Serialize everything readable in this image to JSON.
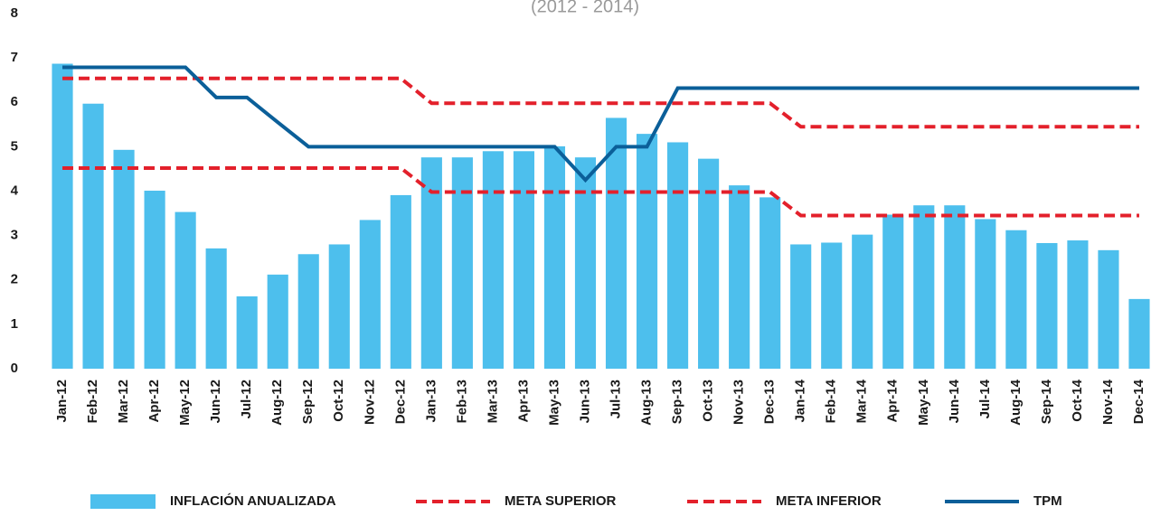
{
  "chart_data": {
    "type": "bar",
    "subtitle": "(2012 - 2014)",
    "categories": [
      "Jan-12",
      "Feb-12",
      "Mar-12",
      "Apr-12",
      "May-12",
      "Jun-12",
      "Jul-12",
      "Aug-12",
      "Sep-12",
      "Oct-12",
      "Nov-12",
      "Dec-12",
      "Jan-13",
      "Feb-13",
      "Mar-13",
      "Apr-13",
      "May-13",
      "Jun-13",
      "Jul-13",
      "Aug-13",
      "Sep-13",
      "Oct-13",
      "Nov-13",
      "Dec-13",
      "Jan-14",
      "Feb-14",
      "Mar-14",
      "Apr-14",
      "May-14",
      "Jun-14",
      "Jul-14",
      "Aug-14",
      "Sep-14",
      "Oct-14",
      "Nov-14",
      "Dec-14"
    ],
    "series": [
      {
        "name": "INFLACIÓN ANUALIZADA",
        "type": "bar",
        "color": "#4dbfed",
        "values": [
          6.87,
          5.97,
          4.93,
          4.01,
          3.53,
          2.71,
          1.63,
          2.12,
          2.58,
          2.8,
          3.35,
          3.91,
          4.76,
          4.76,
          4.9,
          4.9,
          5.01,
          4.76,
          5.65,
          5.29,
          5.1,
          4.73,
          4.13,
          3.86,
          2.8,
          2.84,
          3.02,
          3.47,
          3.68,
          3.68,
          3.37,
          3.12,
          2.83,
          2.89,
          2.67,
          1.57
        ]
      },
      {
        "name": "META SUPERIOR",
        "type": "line",
        "dashed": true,
        "color": "#e3202b",
        "values": [
          6.54,
          6.54,
          6.54,
          6.54,
          6.54,
          6.54,
          6.54,
          6.54,
          6.54,
          6.54,
          6.54,
          6.54,
          5.98,
          5.98,
          5.98,
          5.98,
          5.98,
          5.98,
          5.98,
          5.98,
          5.98,
          5.98,
          5.98,
          5.98,
          5.45,
          5.45,
          5.45,
          5.45,
          5.45,
          5.45,
          5.45,
          5.45,
          5.45,
          5.45,
          5.45,
          5.45
        ]
      },
      {
        "name": "META INFERIOR",
        "type": "line",
        "dashed": true,
        "color": "#e3202b",
        "values": [
          4.52,
          4.52,
          4.52,
          4.52,
          4.52,
          4.52,
          4.52,
          4.52,
          4.52,
          4.52,
          4.52,
          4.52,
          3.98,
          3.98,
          3.98,
          3.98,
          3.98,
          3.98,
          3.98,
          3.98,
          3.98,
          3.98,
          3.98,
          3.98,
          3.45,
          3.45,
          3.45,
          3.45,
          3.45,
          3.45,
          3.45,
          3.45,
          3.45,
          3.45,
          3.45,
          3.45
        ]
      },
      {
        "name": "TPM",
        "type": "line",
        "dashed": false,
        "color": "#0b5f99",
        "values": [
          6.79,
          6.79,
          6.79,
          6.79,
          6.79,
          6.11,
          6.11,
          5.55,
          5.0,
          5.0,
          5.0,
          5.0,
          5.0,
          5.0,
          5.0,
          5.0,
          5.0,
          4.25,
          5.0,
          5.0,
          6.32,
          6.32,
          6.32,
          6.32,
          6.32,
          6.32,
          6.32,
          6.32,
          6.32,
          6.32,
          6.32,
          6.32,
          6.32,
          6.32,
          6.32,
          6.32
        ]
      }
    ],
    "ylim": [
      0,
      8
    ],
    "yticks": [
      0,
      1,
      2,
      3,
      4,
      5,
      6,
      7,
      8
    ],
    "grid": false,
    "legend": "bottom"
  }
}
